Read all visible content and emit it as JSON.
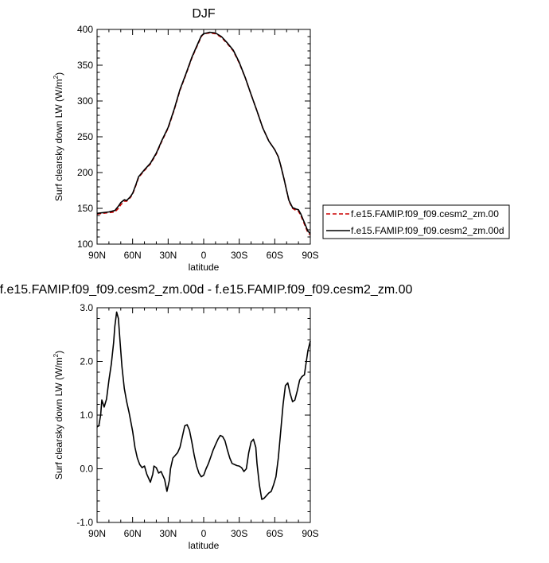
{
  "chart_data": [
    {
      "type": "line",
      "title": "DJF",
      "xlabel": "latitude",
      "ylabel_main": "Surf clearsky down LW (W/m",
      "ylabel_sup": "2",
      "ylabel_end": ")",
      "xlim": [
        90,
        -90
      ],
      "ylim": [
        100,
        400
      ],
      "x_ticks": [
        {
          "value": 90,
          "label": "90N"
        },
        {
          "value": 60,
          "label": "60N"
        },
        {
          "value": 30,
          "label": "30N"
        },
        {
          "value": 0,
          "label": "0"
        },
        {
          "value": -30,
          "label": "30S"
        },
        {
          "value": -60,
          "label": "60S"
        },
        {
          "value": -90,
          "label": "90S"
        }
      ],
      "y_ticks": [
        {
          "value": 100,
          "label": "100"
        },
        {
          "value": 150,
          "label": "150"
        },
        {
          "value": 200,
          "label": "200"
        },
        {
          "value": 250,
          "label": "250"
        },
        {
          "value": 300,
          "label": "300"
        },
        {
          "value": 350,
          "label": "350"
        },
        {
          "value": 400,
          "label": "400"
        }
      ],
      "legend_position": "right",
      "series": [
        {
          "name": "f.e15.FAMIP.f09_f09.cesm2_zm.00",
          "color": "#cc0000",
          "dash": "dashed",
          "x": [
            90,
            85,
            80,
            75,
            72,
            70,
            67,
            65,
            62,
            60,
            57,
            55,
            50,
            45,
            40,
            35,
            30,
            25,
            20,
            15,
            10,
            5,
            2,
            0,
            -5,
            -10,
            -15,
            -20,
            -25,
            -30,
            -35,
            -40,
            -45,
            -50,
            -55,
            -60,
            -63,
            -65,
            -68,
            -70,
            -72,
            -75,
            -78,
            -80,
            -82,
            -85,
            -88,
            -90
          ],
          "y": [
            142,
            143,
            144,
            145,
            150,
            155,
            160,
            160,
            165,
            170,
            183,
            193,
            203,
            212,
            226,
            245,
            262,
            287,
            315,
            337,
            360,
            379,
            390,
            394,
            395,
            394,
            389,
            380,
            370,
            353,
            333,
            309,
            286,
            262,
            244,
            232,
            222,
            210,
            190,
            175,
            160,
            150,
            147,
            146,
            140,
            128,
            116,
            113
          ]
        },
        {
          "name": "f.e15.FAMIP.f09_f09.cesm2_zm.00d",
          "color": "#000000",
          "dash": "solid",
          "x": [
            90,
            85,
            80,
            75,
            72,
            70,
            67,
            65,
            62,
            60,
            57,
            55,
            50,
            45,
            40,
            35,
            30,
            25,
            20,
            15,
            10,
            5,
            2,
            0,
            -5,
            -10,
            -15,
            -20,
            -25,
            -30,
            -35,
            -40,
            -45,
            -50,
            -55,
            -60,
            -63,
            -65,
            -68,
            -70,
            -72,
            -75,
            -78,
            -80,
            -82,
            -85,
            -88,
            -90
          ],
          "y": [
            143,
            144,
            145,
            147,
            153,
            158,
            162,
            161,
            166,
            171,
            184,
            194,
            204,
            213,
            227,
            246,
            263,
            288,
            316,
            338,
            361,
            380,
            391,
            394,
            396,
            395,
            390,
            381,
            371,
            354,
            333,
            309,
            286,
            262,
            244,
            232,
            222,
            210,
            190,
            175,
            161,
            151,
            149,
            148,
            142,
            130,
            118,
            115
          ]
        }
      ]
    },
    {
      "type": "line",
      "title": "f.e15.FAMIP.f09_f09.cesm2_zm.00d - f.e15.FAMIP.f09_f09.cesm2_zm.00",
      "xlabel": "latitude",
      "ylabel_main": "Surf clearsky down LW (W/m",
      "ylabel_sup": "2",
      "ylabel_end": ")",
      "xlim": [
        90,
        -90
      ],
      "ylim": [
        -1.0,
        3.0
      ],
      "x_ticks": [
        {
          "value": 90,
          "label": "90N"
        },
        {
          "value": 60,
          "label": "60N"
        },
        {
          "value": 30,
          "label": "30N"
        },
        {
          "value": 0,
          "label": "0"
        },
        {
          "value": -30,
          "label": "30S"
        },
        {
          "value": -60,
          "label": "60S"
        },
        {
          "value": -90,
          "label": "90S"
        }
      ],
      "y_ticks": [
        {
          "value": -1.0,
          "label": "-1.0"
        },
        {
          "value": 0.0,
          "label": "0.0"
        },
        {
          "value": 1.0,
          "label": "1.0"
        },
        {
          "value": 2.0,
          "label": "2.0"
        },
        {
          "value": 3.0,
          "label": "3.0"
        }
      ],
      "series": [
        {
          "color": "#000000",
          "dash": "solid",
          "x": [
            90,
            88.5,
            87,
            86,
            84,
            82,
            80,
            78,
            76,
            75,
            73.5,
            72,
            70.5,
            69,
            67,
            65,
            63,
            60,
            58,
            56,
            54,
            52,
            50,
            48,
            46,
            45,
            43,
            42,
            40,
            38,
            36,
            34,
            33,
            31,
            29,
            28,
            26,
            24,
            22,
            20,
            18,
            16,
            14,
            12,
            10,
            8,
            6,
            4,
            2,
            0,
            -2,
            -4,
            -6,
            -8,
            -10,
            -12,
            -14,
            -16,
            -18,
            -20,
            -22,
            -24,
            -26,
            -28,
            -30,
            -32,
            -34,
            -36,
            -38,
            -40,
            -42,
            -44,
            -45,
            -47,
            -49,
            -51,
            -53,
            -55,
            -57,
            -59,
            -61,
            -63,
            -65,
            -67,
            -69,
            -71,
            -73,
            -75,
            -77,
            -79,
            -81,
            -83,
            -85,
            -86,
            -88,
            -90
          ],
          "y": [
            0.78,
            0.8,
            1.0,
            1.28,
            1.15,
            1.3,
            1.65,
            1.95,
            2.35,
            2.65,
            2.92,
            2.8,
            2.35,
            1.9,
            1.5,
            1.25,
            1.05,
            0.7,
            0.4,
            0.2,
            0.08,
            0.02,
            0.05,
            -0.1,
            -0.2,
            -0.25,
            -0.1,
            0.05,
            0.02,
            -0.08,
            -0.05,
            -0.15,
            -0.2,
            -0.42,
            -0.22,
            0.0,
            0.2,
            0.25,
            0.3,
            0.4,
            0.6,
            0.8,
            0.82,
            0.72,
            0.5,
            0.25,
            0.05,
            -0.08,
            -0.15,
            -0.12,
            0.0,
            0.1,
            0.22,
            0.35,
            0.45,
            0.55,
            0.62,
            0.6,
            0.52,
            0.35,
            0.2,
            0.1,
            0.08,
            0.06,
            0.05,
            0.02,
            -0.05,
            0.0,
            0.3,
            0.5,
            0.55,
            0.4,
            0.1,
            -0.3,
            -0.57,
            -0.55,
            -0.5,
            -0.45,
            -0.42,
            -0.3,
            -0.15,
            0.2,
            0.7,
            1.2,
            1.55,
            1.6,
            1.4,
            1.25,
            1.28,
            1.45,
            1.65,
            1.72,
            1.75,
            1.9,
            2.2,
            2.38
          ]
        }
      ]
    }
  ]
}
